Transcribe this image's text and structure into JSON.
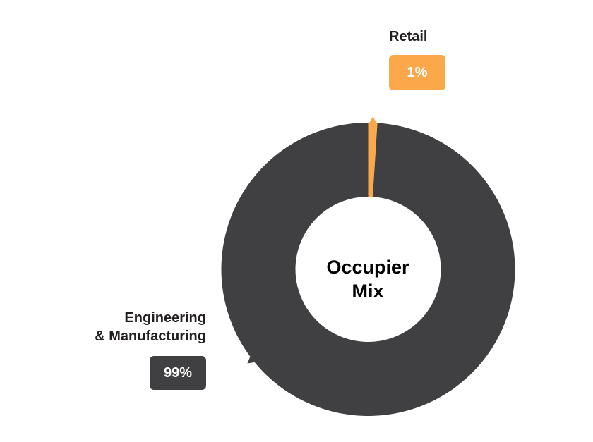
{
  "chart_data": {
    "type": "pie",
    "variant": "donut",
    "center_label": [
      "Occupier",
      "Mix"
    ],
    "slices": [
      {
        "name": "Retail",
        "value": 1,
        "label": "1%",
        "color": "#FBA84A"
      },
      {
        "name_lines": [
          "Engineering",
          "& Manufacturing"
        ],
        "name": "Engineering & Manufacturing",
        "value": 99,
        "label": "99%",
        "color": "#404042"
      }
    ]
  }
}
